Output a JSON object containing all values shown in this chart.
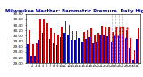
{
  "title": "Milwaukee Weather: Barometric Pressure  Daily High/Low",
  "title_fontsize": 3.8,
  "title_color": "#000080",
  "ylim": [
    29.0,
    30.8
  ],
  "ytick_labels": [
    "29.00",
    "29.20",
    "29.40",
    "29.60",
    "29.80",
    "30.00",
    "30.20",
    "30.40",
    "30.60",
    "30.80"
  ],
  "ytick_vals": [
    29.0,
    29.2,
    29.4,
    29.6,
    29.8,
    30.0,
    30.2,
    30.4,
    30.6,
    30.8
  ],
  "ytick_fontsize": 3.0,
  "xtick_fontsize": 2.8,
  "bar_width": 0.42,
  "background_color": "#ffffff",
  "high_color": "#dd0000",
  "low_color": "#0000cc",
  "days": [
    1,
    2,
    3,
    4,
    5,
    6,
    7,
    8,
    9,
    10,
    11,
    12,
    13,
    14,
    15,
    16,
    17,
    18,
    19,
    20,
    21,
    22,
    23,
    24,
    25,
    26,
    27,
    28,
    29,
    30,
    31
  ],
  "highs": [
    30.22,
    29.68,
    29.72,
    30.58,
    30.58,
    30.45,
    30.28,
    30.12,
    30.05,
    30.35,
    30.52,
    30.4,
    30.18,
    30.18,
    30.22,
    30.15,
    30.22,
    30.28,
    30.05,
    30.12,
    30.38,
    30.35,
    30.32,
    30.15,
    30.28,
    30.28,
    30.35,
    30.22,
    29.92,
    29.45,
    30.28
  ],
  "lows": [
    29.68,
    29.28,
    29.28,
    29.85,
    30.12,
    30.05,
    29.88,
    29.72,
    29.65,
    29.95,
    30.12,
    30.05,
    29.85,
    29.85,
    29.92,
    29.78,
    29.88,
    29.95,
    29.72,
    29.75,
    30.02,
    30.02,
    29.98,
    29.78,
    29.95,
    29.95,
    30.05,
    29.88,
    29.55,
    29.1,
    29.88
  ],
  "dashed_day_start": 24,
  "dashed_day_end": 27,
  "dot_high_days": [
    25,
    26,
    28
  ],
  "dot_low_days": [
    25,
    26,
    28
  ],
  "xlim": [
    0.2,
    31.8
  ]
}
